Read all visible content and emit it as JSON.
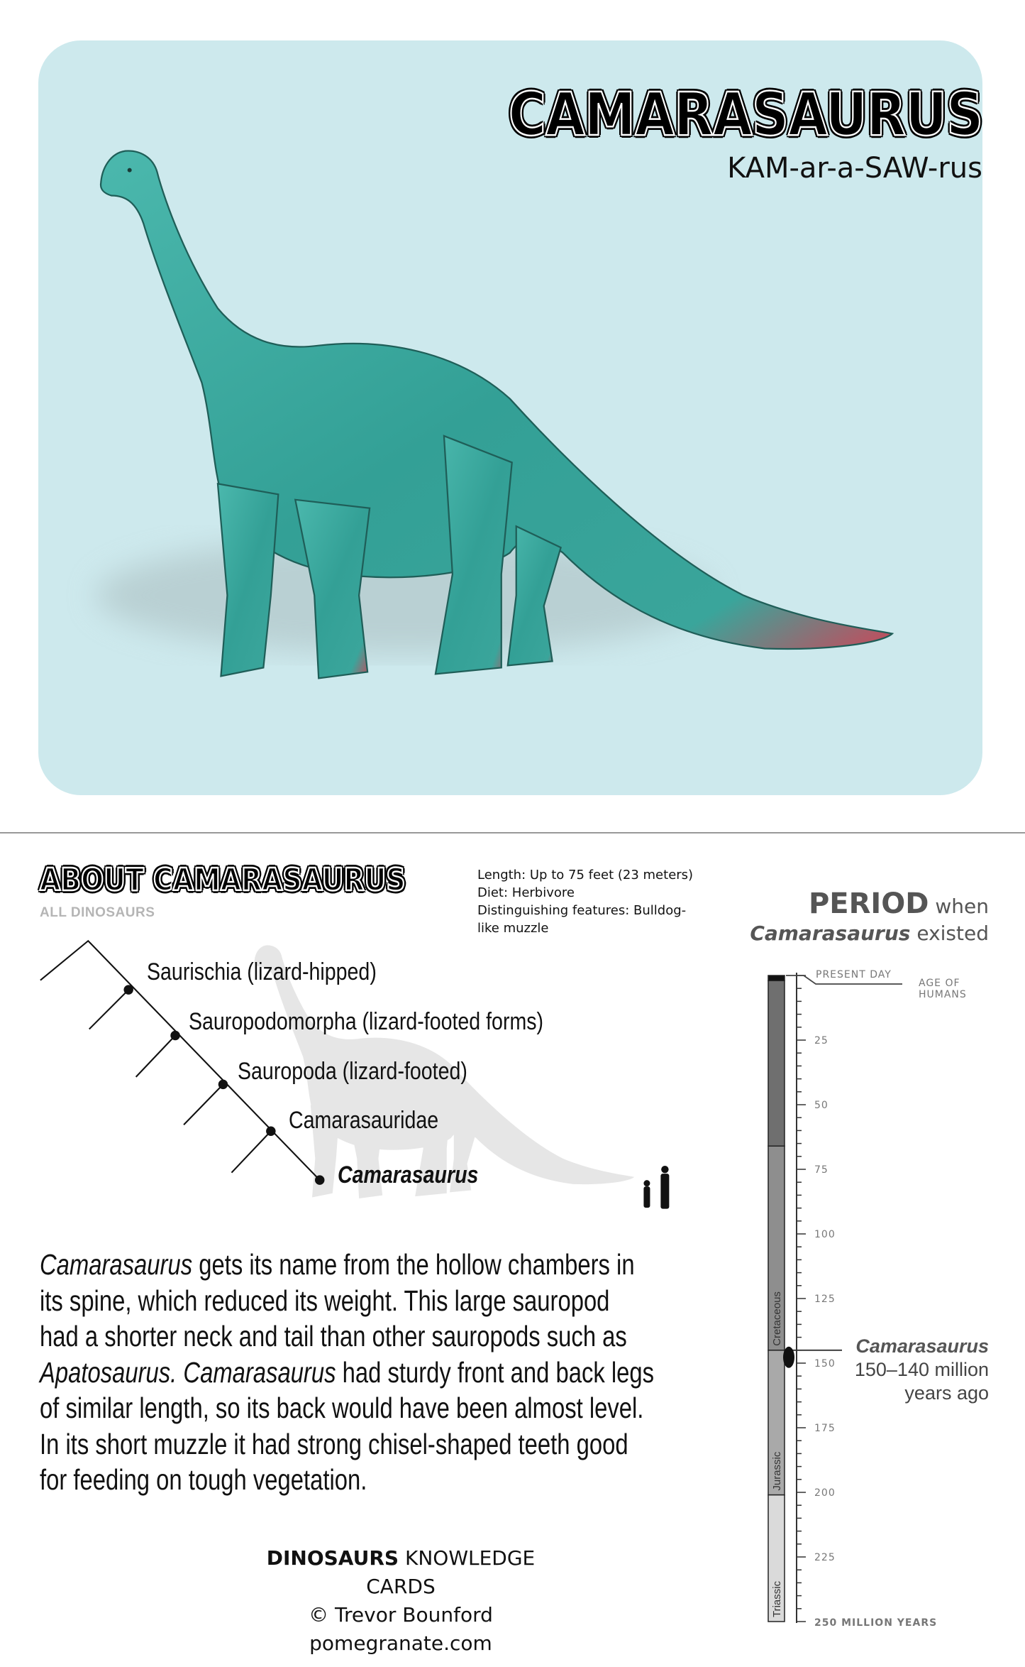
{
  "header": {
    "title": "CAMARASAURUS",
    "pronunciation": "KAM-ar-a-SAW-rus",
    "card_color": "#cde9ed",
    "dinosaur_color": "#3fa9a0"
  },
  "about": {
    "heading": "ABOUT CAMARASAURUS",
    "all_dinosaurs_link": "ALL DINOSAURS",
    "stats": [
      "Length: Up to 75 feet (23 meters)",
      "Diet: Herbivore",
      "Distinguishing features: Bulldog-",
      "like muzzle"
    ]
  },
  "cladogram": {
    "taxa": [
      "Saurischia (lizard-hipped)",
      "Sauropodomorpha (lizard-footed forms)",
      "Sauropoda (lizard-footed)",
      "Camarasauridae",
      "Camarasaurus"
    ]
  },
  "description": {
    "lines": [
      [
        {
          "t": "Camarasaurus",
          "i": true
        },
        {
          "t": " gets its name from the hollow chambers in"
        }
      ],
      [
        {
          "t": "its spine, which reduced its weight. This large sauropod"
        }
      ],
      [
        {
          "t": "had a shorter neck and tail than other sauropods such as"
        }
      ],
      [
        {
          "t": "Apatosaurus. Camarasaurus",
          "i": true
        },
        {
          "t": " had sturdy front and back legs"
        }
      ],
      [
        {
          "t": "of similar length, so its back would have been almost level."
        }
      ],
      [
        {
          "t": "In its short muzzle it had strong chisel-shaped teeth good"
        }
      ],
      [
        {
          "t": "for feeding on tough vegetation."
        }
      ]
    ]
  },
  "footer": {
    "brand_bold": "DINOSAURS",
    "brand_rest": " KNOWLEDGE CARDS",
    "copyright": "© Trevor Bounford",
    "website": "pomegranate.com"
  },
  "timeline": {
    "heading_bold": "PERIOD",
    "heading_rest": " when",
    "sub_italic": "Camarasaurus",
    "sub_rest": " existed",
    "present_day": "PRESENT DAY",
    "age_of_humans_1": "AGE OF",
    "age_of_humans_2": "HUMANS",
    "tick_labels": [
      25,
      50,
      75,
      100,
      125,
      150,
      175,
      200,
      225
    ],
    "bottom_label": "250 MILLION YEARS",
    "axis_max": 250,
    "periods": [
      {
        "name": "",
        "start": 0,
        "end": 2,
        "color": "#111111"
      },
      {
        "name": "",
        "start": 2,
        "end": 66,
        "color": "#6f6f6f"
      },
      {
        "name": "Cretaceous",
        "start": 66,
        "end": 145,
        "color": "#8e8e8e"
      },
      {
        "name": "Jurassic",
        "start": 145,
        "end": 201,
        "color": "#a9a9a9"
      },
      {
        "name": "Triassic",
        "start": 201,
        "end": 250,
        "color": "#dadada"
      }
    ],
    "marker": {
      "name": "Camarasaurus",
      "range": "150–140 million",
      "suffix": "years ago",
      "start": 150,
      "end": 140
    }
  }
}
